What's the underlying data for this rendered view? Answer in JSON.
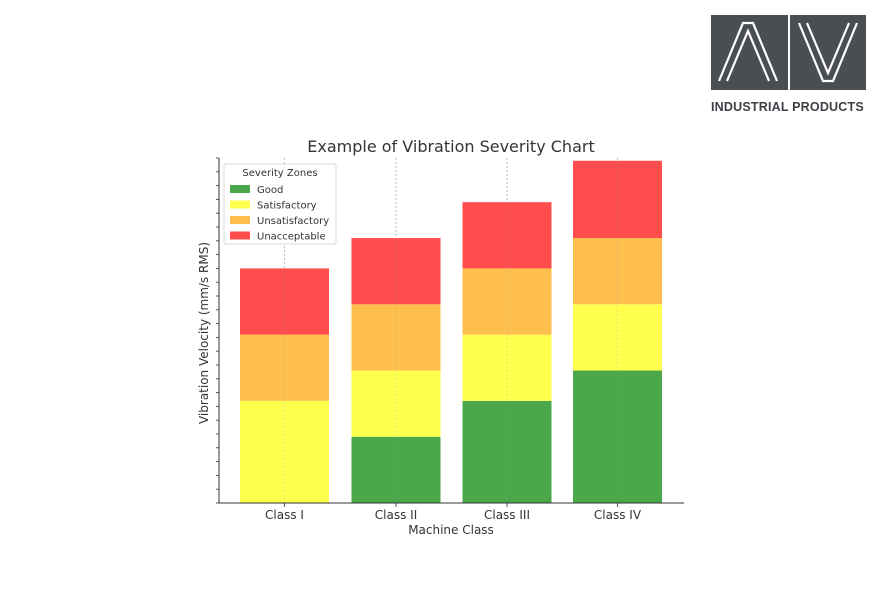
{
  "logo": {
    "letters": "AV",
    "caption": "INDUSTRIAL PRODUCTS",
    "box_color": "#4a4d52"
  },
  "chart_data": {
    "type": "bar",
    "stacked": true,
    "title": "Example of Vibration Severity Chart",
    "xlabel": "Machine Class",
    "ylabel": "Vibration Velocity (mm/s RMS)",
    "categories": [
      "Class I",
      "Class II",
      "Class III",
      "Class IV"
    ],
    "ylim": [
      0,
      12.5
    ],
    "ytick_labels_shown": false,
    "grid": "vertical dotted lines at category centers",
    "legend": {
      "title": "Severity Zones",
      "placement": "top-left",
      "entries": [
        "Good",
        "Satisfactory",
        "Unsatisfactory",
        "Unacceptable"
      ]
    },
    "series": [
      {
        "name": "Good",
        "color": "#4aa84a",
        "values": [
          0,
          2.4,
          3.7,
          4.8
        ]
      },
      {
        "name": "Satisfactory",
        "color": "#ffff4d",
        "values": [
          3.7,
          2.4,
          2.4,
          2.4
        ]
      },
      {
        "name": "Unsatisfactory",
        "color": "#ffbf4d",
        "values": [
          2.4,
          2.4,
          2.4,
          2.4
        ]
      },
      {
        "name": "Unacceptable",
        "color": "#ff4d4d",
        "values": [
          2.4,
          2.4,
          2.4,
          2.8
        ]
      }
    ]
  }
}
